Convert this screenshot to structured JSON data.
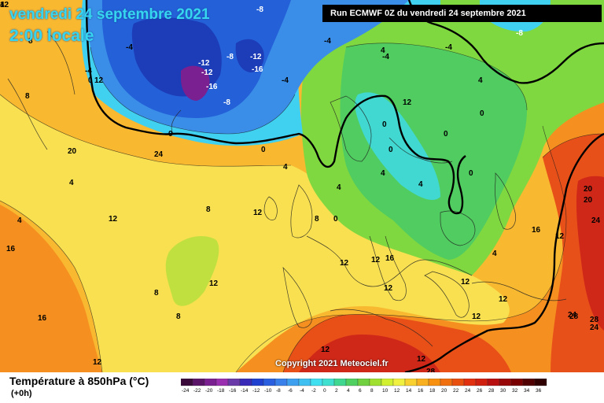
{
  "header": {
    "date_title": "vendredi 24 septembre 2021",
    "local_time": "2:00 locale",
    "run_info": "Run ECMWF 0Z du vendredi 24 septembre 2021"
  },
  "copyright": "Copyright 2021 Meteociel.fr",
  "legend": {
    "title": "Température à 850hPa (°C)",
    "subtitle": "(+0h)",
    "ticks": [
      "-24",
      "-22",
      "-20",
      "-18",
      "-16",
      "-14",
      "-12",
      "-10",
      "-8",
      "-6",
      "-4",
      "-2",
      "0",
      "2",
      "4",
      "6",
      "8",
      "10",
      "12",
      "14",
      "16",
      "18",
      "20",
      "22",
      "24",
      "26",
      "28",
      "30",
      "32",
      "34",
      "36"
    ],
    "colors": [
      "#3a0a3a",
      "#5a1468",
      "#7a2090",
      "#9a30b0",
      "#6a3aa8",
      "#3a2ab8",
      "#2040d0",
      "#2a60e0",
      "#3a80ea",
      "#40a0f0",
      "#40c0f0",
      "#40e0f0",
      "#40e0d0",
      "#40d890",
      "#50d060",
      "#70d040",
      "#a0e030",
      "#d0f030",
      "#f0f040",
      "#f8d030",
      "#f8b020",
      "#f89010",
      "#f07010",
      "#e85010",
      "#e03010",
      "#d02010",
      "#b81010",
      "#980808",
      "#780000",
      "#500000",
      "#300000"
    ]
  },
  "contour_labels": [
    {
      "text": "-8"
    },
    {
      "text": "-4"
    },
    {
      "text": "-4"
    },
    {
      "text": "-12"
    },
    {
      "text": "-8"
    },
    {
      "text": "-12"
    },
    {
      "text": "-16"
    },
    {
      "text": "-12"
    },
    {
      "text": "-16"
    },
    {
      "text": "-8"
    },
    {
      "text": "-4"
    },
    {
      "text": "-8"
    },
    {
      "text": "-4"
    },
    {
      "text": "-4"
    },
    {
      "text": "-4"
    },
    {
      "text": "4"
    },
    {
      "text": "4"
    },
    {
      "text": "0"
    },
    {
      "text": "0"
    },
    {
      "text": "0"
    },
    {
      "text": "0"
    },
    {
      "text": "0"
    },
    {
      "text": "0"
    },
    {
      "text": "4"
    },
    {
      "text": "4"
    },
    {
      "text": "4"
    },
    {
      "text": "0"
    },
    {
      "text": "0"
    },
    {
      "text": "4"
    },
    {
      "text": "4"
    },
    {
      "text": "8"
    },
    {
      "text": "4"
    },
    {
      "text": "4"
    },
    {
      "text": "12"
    },
    {
      "text": "12"
    },
    {
      "text": "12"
    },
    {
      "text": "12"
    },
    {
      "text": "12"
    },
    {
      "text": "12"
    },
    {
      "text": "12"
    },
    {
      "text": "8"
    },
    {
      "text": "8"
    },
    {
      "text": "8"
    },
    {
      "text": "8"
    },
    {
      "text": "12"
    },
    {
      "text": "12"
    },
    {
      "text": "12"
    },
    {
      "text": "12"
    },
    {
      "text": "12"
    },
    {
      "text": "16"
    },
    {
      "text": "16"
    },
    {
      "text": "12"
    },
    {
      "text": "20"
    },
    {
      "text": "20"
    },
    {
      "text": "24"
    },
    {
      "text": "24"
    },
    {
      "text": "28"
    },
    {
      "text": "24"
    },
    {
      "text": "28"
    },
    {
      "text": "28"
    },
    {
      "text": "24"
    },
    {
      "text": "20"
    },
    {
      "text": "16"
    },
    {
      "text": "16"
    },
    {
      "text": "12"
    },
    {
      "text": "12"
    },
    {
      "text": "8"
    },
    {
      "text": "0"
    },
    {
      "text": "4"
    },
    {
      "text": "12"
    }
  ]
}
